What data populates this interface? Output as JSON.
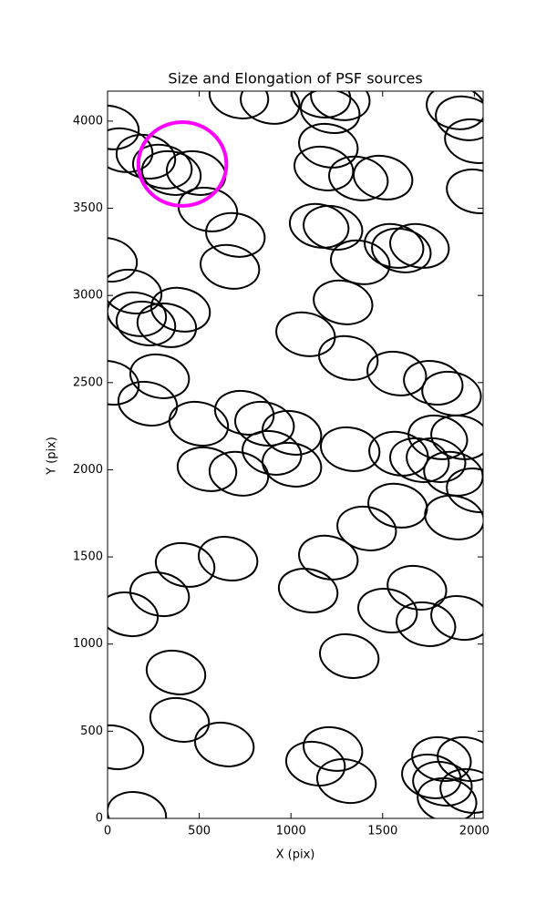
{
  "chart_data": {
    "type": "ellipse",
    "title": "Size and Elongation of PSF sources",
    "x_label": "X (pix)",
    "y_label": "Y (pix)",
    "xlim": [
      0,
      2048
    ],
    "ylim": [
      0,
      4172
    ],
    "xticks": [
      0,
      500,
      1000,
      1500,
      2000
    ],
    "yticks": [
      0,
      500,
      1000,
      1500,
      2000,
      2500,
      3000,
      3500,
      4000
    ],
    "color": "#000000",
    "ellipse_width": 323,
    "ellipse_height": 246,
    "ellipse_angle": 12,
    "x": [
      716,
      886,
      1164,
      1214,
      1269,
      1900,
      1950,
      2000,
      2010,
      10,
      85,
      209,
      299,
      348,
      483,
      547,
      697,
      667,
      1204,
      1179,
      1368,
      1502,
      1154,
      1229,
      1378,
      1562,
      1602,
      1701,
      0,
      134,
      159,
      209,
      323,
      398,
      1284,
      1080,
      1313,
      1577,
      1776,
      1876,
      10,
      284,
      219,
      497,
      746,
      856,
      1005,
      896,
      1005,
      1323,
      1587,
      1801,
      1791,
      1925,
      1701,
      1886,
      542,
      716,
      2010,
      1891,
      1582,
      1413,
      423,
      657,
      1204,
      1094,
      284,
      114,
      1687,
      1527,
      1736,
      1925,
      1318,
      373,
      393,
      637,
      35,
      1229,
      1134,
      1303,
      159,
      1821,
      1960,
      1766,
      1826,
      1851,
      1975
    ],
    "y": [
      4141,
      4110,
      4146,
      4057,
      4131,
      4079,
      4016,
      3885,
      3597,
      3964,
      3833,
      3796,
      3739,
      3702,
      3702,
      3493,
      3347,
      3164,
      3859,
      3728,
      3671,
      3676,
      3399,
      3388,
      3190,
      3284,
      3258,
      3284,
      3205,
      3022,
      2892,
      2839,
      2829,
      2918,
      2960,
      2777,
      2641,
      2552,
      2499,
      2437,
      2499,
      2536,
      2379,
      2264,
      2327,
      2264,
      2212,
      2097,
      2029,
      2118,
      2092,
      2186,
      2055,
      2186,
      2055,
      1977,
      2003,
      1977,
      1882,
      1726,
      1794,
      1663,
      1454,
      1490,
      1496,
      1307,
      1286,
      1171,
      1323,
      1192,
      1114,
      1150,
      931,
      837,
      565,
      424,
      408,
      398,
      314,
      214,
      26,
      340,
      340,
      241,
      199,
      105,
      157
    ],
    "highlight": {
      "x": 408,
      "y": 3754,
      "radius": 240,
      "color": "#ff00ff"
    }
  }
}
